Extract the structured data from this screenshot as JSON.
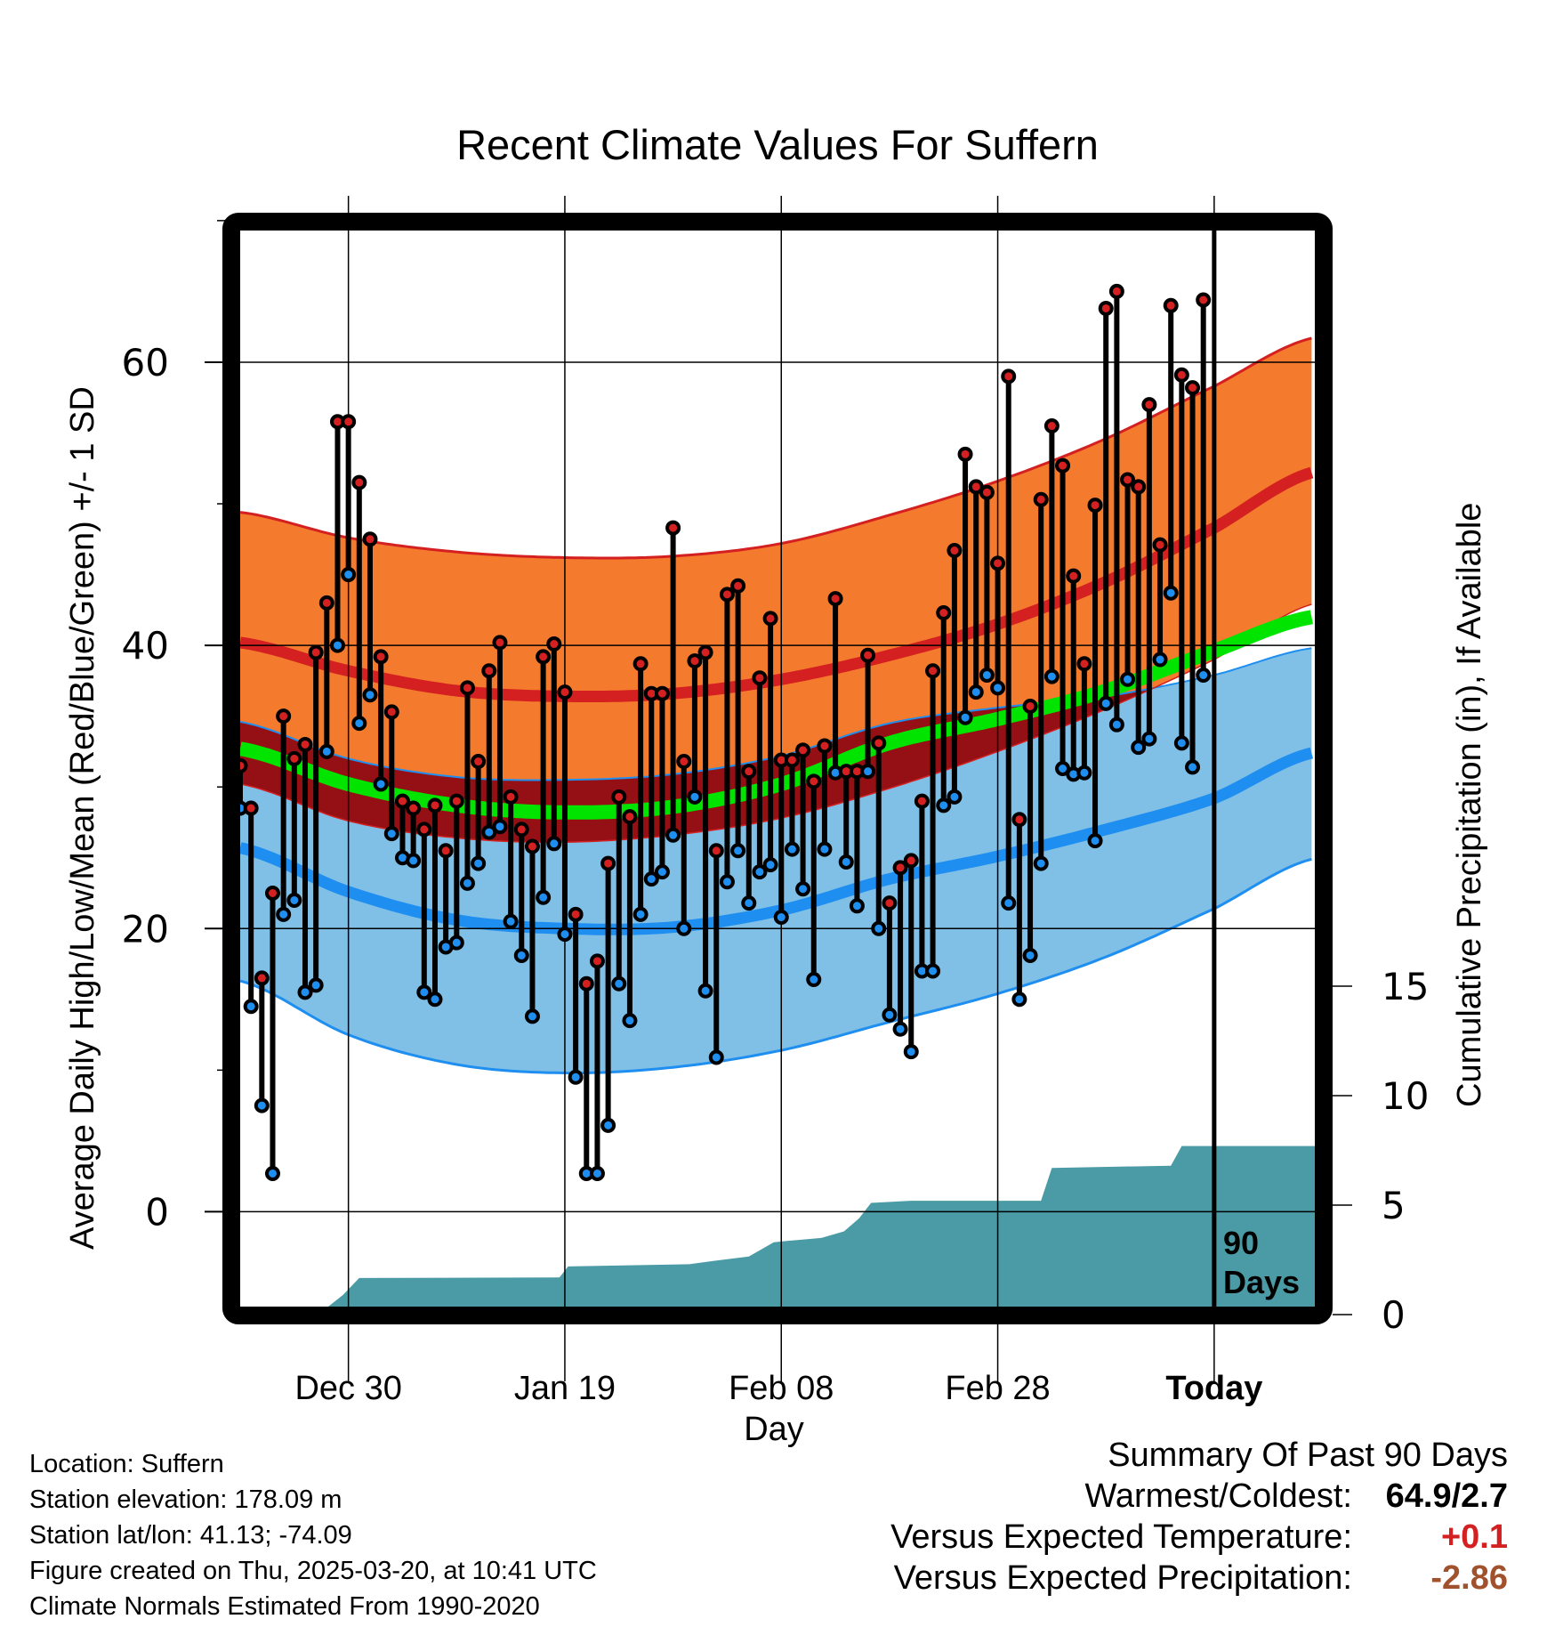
{
  "chart_data": {
    "type": "line",
    "title": "Recent Climate Values For Suffern",
    "xlabel": "Day",
    "ylabel": "Average Daily High/Low/Mean (Red/Blue/Green) +/- 1 SD",
    "y2label": "Cumulative Precipitation (in), If Available",
    "x_ticks": [
      {
        "day": 10,
        "label": "Dec 30"
      },
      {
        "day": 30,
        "label": "Jan 19"
      },
      {
        "day": 50,
        "label": "Feb 08"
      },
      {
        "day": 70,
        "label": "Feb 28"
      },
      {
        "day": 90,
        "label": "Today"
      }
    ],
    "x_range_days_from_dec20": [
      0,
      99.3
    ],
    "ylim": [
      -6.7,
      69.3
    ],
    "y_ticks": [
      0,
      20,
      40,
      60
    ],
    "y2lim": [
      0,
      17.4
    ],
    "y2_ticks": [
      0,
      5,
      10,
      15
    ],
    "grid": true,
    "today_marker": {
      "day": 90,
      "label_line1": "90",
      "label_line2": "Days"
    },
    "normals": {
      "days": [
        0,
        10,
        20,
        30,
        40,
        50,
        60,
        70,
        80,
        90,
        99
      ],
      "high_plus_sd": [
        49.4,
        47.6,
        46.6,
        46.2,
        46.3,
        47.2,
        49.2,
        51.6,
        54.6,
        58.3,
        61.7
      ],
      "high_mean": [
        40.2,
        38.2,
        36.8,
        36.4,
        36.6,
        37.6,
        39.3,
        41.5,
        44.5,
        48.3,
        52.2
      ],
      "high_minus_sd": [
        30.2,
        27.6,
        26.4,
        26.1,
        26.6,
        27.8,
        29.9,
        32.5,
        35.5,
        39.0,
        42.9
      ],
      "mean": [
        32.7,
        30.2,
        28.7,
        28.2,
        28.6,
        30.2,
        33.1,
        34.8,
        36.8,
        39.6,
        42.0
      ],
      "low_plus_sd": [
        34.6,
        32.0,
        30.7,
        30.5,
        30.9,
        32.2,
        34.5,
        35.6,
        36.4,
        37.9,
        39.8
      ],
      "low_mean": [
        25.7,
        22.6,
        20.6,
        20.0,
        20.1,
        21.3,
        23.5,
        25.1,
        27.0,
        29.2,
        32.4
      ],
      "low_minus_sd": [
        16.3,
        12.5,
        10.4,
        9.8,
        10.2,
        11.4,
        13.4,
        15.4,
        18.0,
        21.4,
        24.9
      ]
    },
    "series": [
      {
        "name": "Daily High",
        "color": "#d42020",
        "values": [
          31.5,
          28.5,
          16.5,
          22.5,
          35.0,
          32.0,
          33.0,
          39.5,
          43.0,
          55.8,
          55.8,
          51.5,
          47.5,
          39.2,
          35.3,
          29.0,
          28.5,
          27.0,
          28.7,
          25.5,
          29.0,
          37.0,
          31.8,
          38.2,
          40.2,
          29.3,
          27.0,
          25.8,
          39.2,
          40.1,
          36.7,
          21.0,
          16.1,
          17.7,
          24.6,
          29.3,
          27.9,
          38.7,
          36.6,
          36.6,
          48.3,
          31.8,
          38.9,
          39.5,
          25.5,
          43.6,
          44.2,
          31.1,
          37.7,
          41.9,
          31.9,
          31.9,
          32.6,
          30.4,
          32.9,
          43.3,
          31.1,
          31.1,
          39.3,
          33.1,
          21.8,
          24.3,
          24.8,
          29.0,
          38.2,
          42.3,
          46.7,
          53.5,
          51.2,
          50.8,
          45.8,
          59.0,
          27.7,
          35.7,
          50.3,
          55.5,
          52.7,
          44.9,
          38.7,
          49.9,
          63.8,
          65.0,
          51.7,
          51.2,
          57.0,
          47.1,
          64.0,
          59.1,
          58.2,
          64.4
        ]
      },
      {
        "name": "Daily Low",
        "color": "#1e8ff0",
        "values": [
          28.5,
          14.5,
          7.5,
          2.7,
          21.0,
          22.0,
          15.5,
          16.0,
          32.5,
          40.0,
          45.0,
          34.5,
          36.5,
          30.2,
          26.7,
          25.0,
          24.8,
          15.5,
          15.0,
          18.7,
          19.0,
          23.2,
          24.6,
          26.8,
          27.2,
          20.5,
          18.1,
          13.8,
          22.2,
          26.0,
          19.6,
          9.5,
          2.7,
          2.7,
          6.1,
          16.1,
          13.5,
          21.0,
          23.5,
          24.0,
          26.6,
          20.0,
          29.3,
          15.6,
          10.9,
          23.3,
          25.5,
          21.8,
          24.0,
          24.5,
          20.8,
          25.6,
          22.8,
          16.4,
          25.6,
          31.0,
          24.7,
          21.6,
          31.1,
          20.0,
          13.9,
          12.9,
          11.3,
          17.0,
          17.0,
          28.7,
          29.3,
          34.9,
          36.7,
          37.9,
          37.0,
          21.8,
          15.0,
          18.1,
          24.6,
          37.8,
          31.3,
          30.9,
          31.0,
          26.2,
          35.9,
          34.4,
          37.6,
          32.8,
          33.4,
          39.0,
          43.7,
          33.1,
          31.4,
          37.9
        ]
      }
    ],
    "precipitation": {
      "name": "Cumulative Precipitation (in)",
      "color": "#4a9ba5",
      "days": [
        0,
        7.2,
        9.5,
        11,
        29.5,
        30.3,
        41.5,
        43.7,
        47,
        49.3,
        50.2,
        53.7,
        55.8,
        57.2,
        58.3,
        62,
        74,
        75,
        86,
        87,
        99.3
      ],
      "values": [
        0,
        0,
        0.9,
        1.67,
        1.7,
        2.2,
        2.3,
        2.45,
        2.65,
        3.3,
        3.35,
        3.5,
        3.8,
        4.4,
        5.1,
        5.2,
        5.2,
        6.7,
        6.8,
        7.7,
        7.7
      ]
    },
    "colors": {
      "high_band": "#f47a2e",
      "high_edge": "#d42020",
      "high_mean_line": "#d42020",
      "overlap_band": "#951014",
      "mean_line": "#00e400",
      "low_band": "#80bfe6",
      "low_edge": "#1e8ff0",
      "low_mean_line": "#1e8ff0"
    }
  },
  "info": {
    "location": "Location: Suffern",
    "elevation": "Station elevation: 178.09 m",
    "latlon": "Station lat/lon: 41.13; -74.09",
    "created": "Figure created on Thu, 2025-03-20, at 10:41 UTC",
    "normals": "Climate Normals Estimated From 1990-2020"
  },
  "summary": {
    "heading": "Summary Of Past 90 Days",
    "warm_cold_label": "Warmest/Coldest:",
    "warm_cold_value": "64.9/2.7",
    "temp_label": "Versus Expected Temperature:",
    "temp_value": "+0.1",
    "temp_color": "#d42020",
    "precip_label": "Versus Expected Precipitation:",
    "precip_value": "-2.86",
    "precip_color": "#a0522d"
  }
}
